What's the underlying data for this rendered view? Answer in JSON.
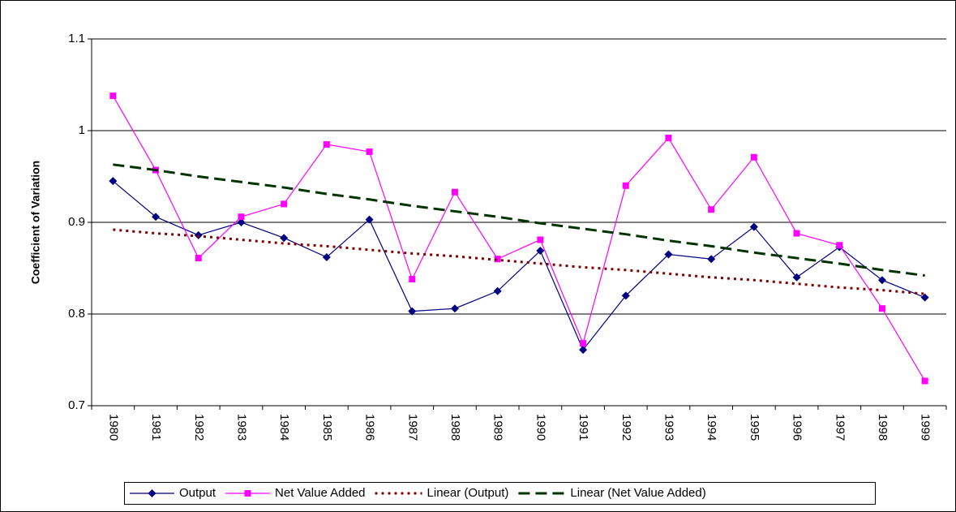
{
  "chart_data": {
    "type": "line",
    "y_label": "Coefficient of Variation",
    "categories": [
      "1980",
      "1981",
      "1982",
      "1983",
      "1984",
      "1985",
      "1986",
      "1987",
      "1988",
      "1989",
      "1990",
      "1991",
      "1992",
      "1993",
      "1994",
      "1995",
      "1996",
      "1997",
      "1998",
      "1999"
    ],
    "series": [
      {
        "name": "Output",
        "color": "#000080",
        "marker": "diamond",
        "line": "solid",
        "values": [
          0.945,
          0.906,
          0.886,
          0.9,
          0.883,
          0.862,
          0.903,
          0.803,
          0.806,
          0.825,
          0.869,
          0.761,
          0.82,
          0.865,
          0.86,
          0.895,
          0.84,
          0.873,
          0.837,
          0.818
        ]
      },
      {
        "name": "Net Value Added",
        "color": "#ff00ff",
        "marker": "square",
        "line": "solid",
        "values": [
          1.038,
          0.957,
          0.861,
          0.906,
          0.92,
          0.985,
          0.977,
          0.838,
          0.933,
          0.86,
          0.881,
          0.768,
          0.94,
          0.992,
          0.914,
          0.971,
          0.888,
          0.875,
          0.806,
          0.727
        ]
      },
      {
        "name": "Linear (Output)",
        "color": "#800000",
        "marker": "none",
        "line": "dotted",
        "values": [
          0.892,
          0.888,
          0.885,
          0.881,
          0.877,
          0.874,
          0.87,
          0.866,
          0.863,
          0.859,
          0.855,
          0.851,
          0.848,
          0.844,
          0.84,
          0.837,
          0.833,
          0.829,
          0.826,
          0.822
        ]
      },
      {
        "name": "Linear (Net Value Added)",
        "color": "#003300",
        "marker": "none",
        "line": "dashed",
        "values": [
          0.963,
          0.957,
          0.95,
          0.944,
          0.938,
          0.931,
          0.925,
          0.918,
          0.912,
          0.906,
          0.899,
          0.893,
          0.887,
          0.88,
          0.874,
          0.867,
          0.861,
          0.855,
          0.848,
          0.842
        ]
      }
    ],
    "ylim": [
      0.7,
      1.1
    ],
    "yticks": [
      0.7,
      0.8,
      0.9,
      1,
      1.1
    ],
    "grid": true,
    "legend": "bottom"
  }
}
